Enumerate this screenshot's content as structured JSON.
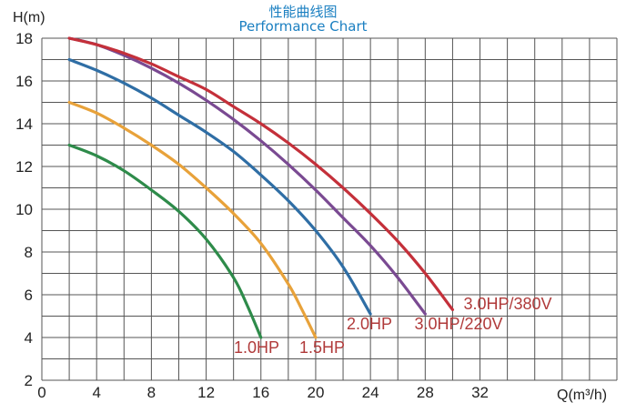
{
  "chart_data": {
    "type": "line",
    "title": "性能曲线图",
    "subtitle": "Performance Chart",
    "xlabel": "Q(m³/h)",
    "ylabel": "H(m)",
    "xlim": [
      0,
      42
    ],
    "ylim": [
      2,
      18
    ],
    "x_ticks": [
      0,
      4,
      8,
      12,
      16,
      20,
      24,
      28,
      32
    ],
    "x_tick_labels": [
      "0",
      "4",
      "8",
      "12",
      "16",
      "20",
      "24",
      "28",
      "32"
    ],
    "y_ticks": [
      2,
      4,
      6,
      8,
      10,
      12,
      14,
      16,
      18
    ],
    "y_tick_labels": [
      "2",
      "4",
      "6",
      "8",
      "10",
      "12",
      "14",
      "16",
      "18"
    ],
    "grid": true,
    "series": [
      {
        "name": "1.0HP",
        "color": "#2e8b4a",
        "label_color": "#b03a3a",
        "points": [
          [
            2,
            13.0
          ],
          [
            4,
            12.5
          ],
          [
            6,
            11.8
          ],
          [
            8,
            10.9
          ],
          [
            10,
            9.9
          ],
          [
            12,
            8.6
          ],
          [
            14,
            6.8
          ],
          [
            15,
            5.5
          ],
          [
            16,
            4.0
          ]
        ]
      },
      {
        "name": "1.5HP",
        "color": "#e8a23a",
        "label_color": "#b03a3a",
        "points": [
          [
            2,
            15.0
          ],
          [
            4,
            14.5
          ],
          [
            6,
            13.8
          ],
          [
            8,
            13.0
          ],
          [
            10,
            12.1
          ],
          [
            12,
            11.0
          ],
          [
            14,
            9.8
          ],
          [
            16,
            8.4
          ],
          [
            18,
            6.5
          ],
          [
            19,
            5.3
          ],
          [
            20,
            4.0
          ]
        ]
      },
      {
        "name": "2.0HP",
        "color": "#2f6ea5",
        "label_color": "#b03a3a",
        "points": [
          [
            2,
            17.0
          ],
          [
            4,
            16.5
          ],
          [
            6,
            15.9
          ],
          [
            8,
            15.2
          ],
          [
            10,
            14.4
          ],
          [
            12,
            13.6
          ],
          [
            14,
            12.7
          ],
          [
            16,
            11.6
          ],
          [
            18,
            10.4
          ],
          [
            20,
            9.0
          ],
          [
            22,
            7.3
          ],
          [
            24,
            5.1
          ]
        ]
      },
      {
        "name": "3.0HP/220V",
        "color": "#7a4a92",
        "label_color": "#b03a3a",
        "points": [
          [
            2,
            18.0
          ],
          [
            4,
            17.7
          ],
          [
            6,
            17.2
          ],
          [
            8,
            16.6
          ],
          [
            10,
            15.9
          ],
          [
            12,
            15.1
          ],
          [
            14,
            14.2
          ],
          [
            16,
            13.2
          ],
          [
            18,
            12.1
          ],
          [
            20,
            10.9
          ],
          [
            22,
            9.6
          ],
          [
            24,
            8.3
          ],
          [
            26,
            6.8
          ],
          [
            28,
            5.1
          ]
        ]
      },
      {
        "name": "3.0HP/380V",
        "color": "#c4303a",
        "label_color": "#b03a3a",
        "points": [
          [
            2,
            18.0
          ],
          [
            4,
            17.7
          ],
          [
            6,
            17.3
          ],
          [
            8,
            16.8
          ],
          [
            10,
            16.2
          ],
          [
            12,
            15.6
          ],
          [
            14,
            14.8
          ],
          [
            16,
            14.0
          ],
          [
            18,
            13.1
          ],
          [
            20,
            12.1
          ],
          [
            22,
            11.0
          ],
          [
            24,
            9.8
          ],
          [
            26,
            8.5
          ],
          [
            28,
            7.0
          ],
          [
            30,
            5.3
          ]
        ]
      }
    ]
  }
}
